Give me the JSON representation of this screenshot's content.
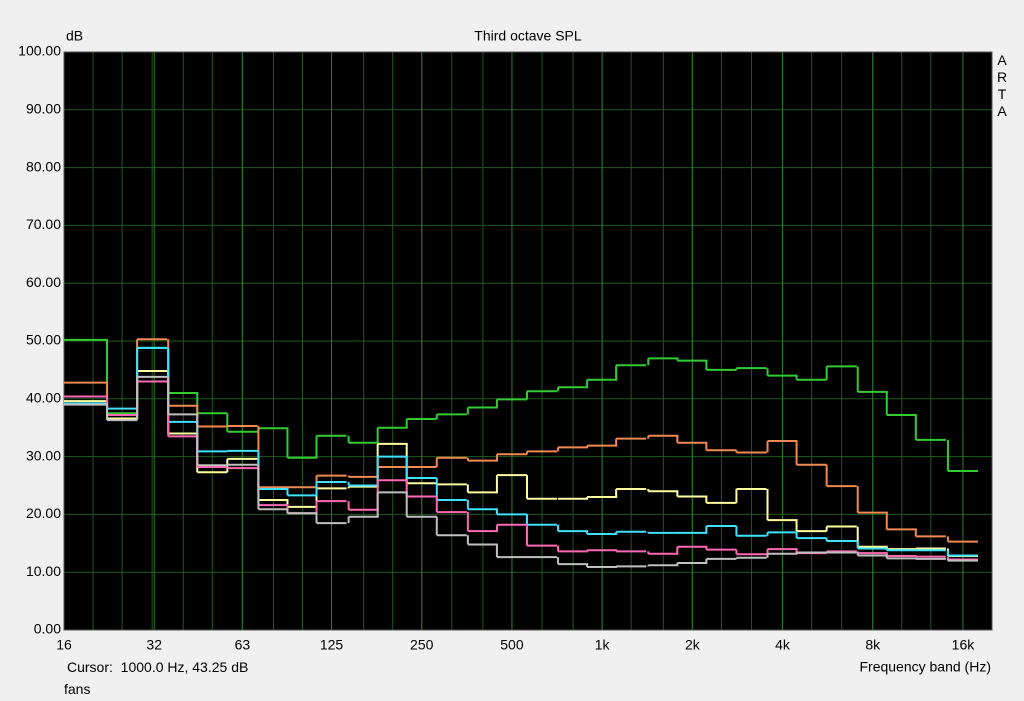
{
  "chart_data": {
    "type": "step",
    "title": "Third octave SPL",
    "y_label": "dB",
    "x_label": "Frequency band (Hz)",
    "watermark": "ARTA",
    "cursor": "Cursor:  1000.0 Hz, 43.25 dB",
    "measurement": "fans",
    "x": [
      16,
      20,
      25,
      31.5,
      40,
      50,
      63,
      80,
      100,
      125,
      160,
      200,
      250,
      315,
      400,
      500,
      630,
      800,
      1000,
      1250,
      1600,
      2000,
      2500,
      3150,
      4000,
      5000,
      6300,
      8000,
      10000,
      12500,
      16000
    ],
    "xscale": "log",
    "xlim": [
      16,
      20000
    ],
    "xticks": [
      16,
      32,
      63,
      125,
      250,
      500,
      {
        "value": 1000,
        "label": "1k"
      },
      {
        "value": 2000,
        "label": "2k"
      },
      {
        "value": 4000,
        "label": "4k"
      },
      {
        "value": 8000,
        "label": "8k"
      },
      {
        "value": 16000,
        "label": "16k"
      }
    ],
    "ylim": [
      0,
      100
    ],
    "yticks": [
      {
        "value": 0,
        "label": "0.00"
      },
      {
        "value": 10,
        "label": "10.00"
      },
      {
        "value": 20,
        "label": "20.00"
      },
      {
        "value": 30,
        "label": "30.00"
      },
      {
        "value": 40,
        "label": "40.00"
      },
      {
        "value": 50,
        "label": "50.00"
      },
      {
        "value": 60,
        "label": "60.00"
      },
      {
        "value": 70,
        "label": "70.00"
      },
      {
        "value": 80,
        "label": "80.00"
      },
      {
        "value": 90,
        "label": "90.00"
      },
      {
        "value": 100,
        "label": "100.00"
      }
    ],
    "grid": true,
    "series": [
      {
        "color": "#33cc33",
        "values": [
          50.2,
          50.2,
          37.5,
          48.8,
          41,
          37.5,
          34.3,
          34.9,
          29.8,
          33.6,
          32.4,
          35,
          36.5,
          37.3,
          38.5,
          39.9,
          41.3,
          42,
          43.3,
          45.8,
          47,
          46.6,
          45,
          45.3,
          44,
          43.3,
          45.6,
          41.2,
          37.2,
          32.9,
          27.5
        ]
      },
      {
        "color": "#f08a50",
        "values": [
          42.8,
          42.8,
          36.5,
          50.3,
          38.8,
          35.2,
          35.3,
          24.7,
          24.7,
          26.7,
          26.5,
          28.2,
          28.2,
          29.8,
          29.3,
          30.4,
          30.9,
          31.6,
          31.9,
          33.1,
          33.6,
          32.4,
          31.1,
          30.7,
          32.7,
          28.6,
          24.9,
          20.3,
          17.4,
          16.2,
          15.3
        ]
      },
      {
        "color": "#ffffa0",
        "values": [
          39.6,
          39.6,
          36.6,
          44.8,
          34,
          27.3,
          29.6,
          22.5,
          21.3,
          24.5,
          24.8,
          32.2,
          25.4,
          25.2,
          23.8,
          26.8,
          22.7,
          22.7,
          23,
          24.4,
          24,
          23.1,
          22,
          24.4,
          19,
          17.1,
          17.9,
          14.4,
          14,
          14.1,
          12.8
        ]
      },
      {
        "color": "#40e0ff",
        "values": [
          39.2,
          39.2,
          38.3,
          48.8,
          36,
          30.9,
          31,
          24.4,
          23.3,
          25.6,
          25,
          30,
          26.3,
          22.5,
          20.9,
          20,
          18.2,
          17.1,
          16.6,
          17,
          16.8,
          16.8,
          18,
          16.3,
          16.9,
          15.9,
          15.4,
          14.1,
          13.8,
          13.8,
          12.9
        ]
      },
      {
        "color": "#ff69b4",
        "values": [
          40.4,
          40.4,
          37.2,
          43,
          33.5,
          28.2,
          28,
          21.6,
          20.2,
          22.3,
          20.8,
          25.9,
          23.1,
          20.4,
          17.1,
          18.2,
          14.6,
          13.6,
          13.8,
          13.6,
          13.2,
          14.4,
          13.9,
          13.1,
          14,
          13.3,
          13.6,
          13.3,
          12.8,
          12.7,
          12.2
        ]
      },
      {
        "color": "#c0c0c0",
        "values": [
          39,
          39,
          36.3,
          43.8,
          37.3,
          28.5,
          28.6,
          20.9,
          20.2,
          18.5,
          19.6,
          23.8,
          19.6,
          16.4,
          14.8,
          12.6,
          12.6,
          11.4,
          10.9,
          11,
          11.2,
          11.6,
          12.3,
          12.5,
          13.2,
          13.4,
          13.4,
          12.9,
          12.4,
          12.3,
          12
        ]
      }
    ]
  }
}
